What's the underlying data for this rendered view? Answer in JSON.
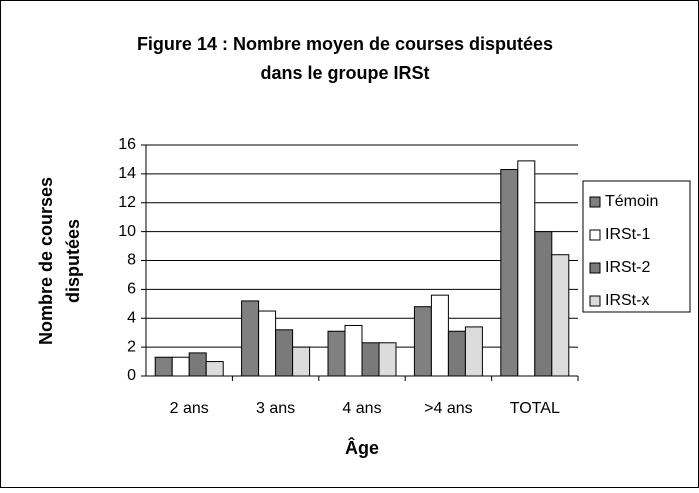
{
  "chart_data": {
    "type": "bar",
    "title": [
      "Figure 14 : Nombre moyen de courses disputées",
      "dans le groupe IRSt"
    ],
    "y_label": [
      "Nombre de courses",
      "disputées"
    ],
    "x_label": "Âge",
    "categories": [
      "2 ans",
      "3 ans",
      "4 ans",
      ">4 ans",
      "TOTAL"
    ],
    "series": [
      {
        "name": "Témoin",
        "color": "#808080",
        "values": [
          1.3,
          5.2,
          3.1,
          4.8,
          14.3
        ]
      },
      {
        "name": "IRSt-1",
        "color": "#ffffff",
        "values": [
          1.3,
          4.5,
          3.5,
          5.6,
          14.9
        ]
      },
      {
        "name": "IRSt-2",
        "color": "#7a7a7a",
        "values": [
          1.6,
          3.2,
          2.3,
          3.1,
          10.0
        ]
      },
      {
        "name": "IRSt-x",
        "color": "#dcdcdc",
        "values": [
          1.0,
          2.0,
          2.3,
          3.4,
          8.4
        ]
      }
    ],
    "ylim": [
      0,
      16
    ],
    "yticks": [
      0,
      2,
      4,
      6,
      8,
      10,
      12,
      14,
      16
    ],
    "grid": true,
    "legend": "right"
  }
}
